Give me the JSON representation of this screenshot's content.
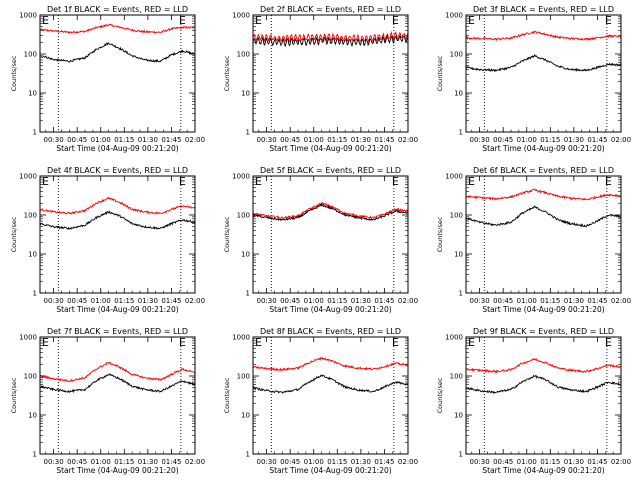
{
  "chart_data": [
    {
      "type": "line",
      "title": "Det 1f BLACK = Events, RED = LLD",
      "ylabel": "Counts/sec",
      "xlabel": "Start Time (04-Aug-09 00:21:20)",
      "x_ticks": [
        "00:30",
        "00:45",
        "01:00",
        "01:15",
        "01:30",
        "01:45",
        "02:00"
      ],
      "y_ticks": [
        "1",
        "10",
        "100",
        "1000"
      ],
      "ylim": [
        1,
        1000
      ],
      "yscale": "log",
      "xlim": [
        "00:21:20",
        "02:00:00"
      ],
      "flag_labels": [
        "E",
        "E"
      ],
      "markers_x": [
        "00:33",
        "01:51"
      ],
      "series": [
        {
          "color": "#ff0000",
          "x": [
            "00:21",
            "00:30",
            "00:40",
            "00:50",
            "00:57",
            "01:05",
            "01:12",
            "01:20",
            "01:28",
            "01:38",
            "01:45",
            "01:52",
            "02:00"
          ],
          "values": [
            420,
            390,
            360,
            380,
            470,
            560,
            490,
            410,
            370,
            360,
            440,
            480,
            470
          ]
        },
        {
          "color": "#000000",
          "x": [
            "00:21",
            "00:30",
            "00:40",
            "00:50",
            "00:57",
            "01:05",
            "01:12",
            "01:20",
            "01:28",
            "01:38",
            "01:45",
            "01:52",
            "02:00"
          ],
          "values": [
            95,
            72,
            65,
            80,
            130,
            190,
            140,
            90,
            70,
            65,
            95,
            120,
            100
          ]
        }
      ]
    },
    {
      "type": "line",
      "title": "Det 2f BLACK = Events, RED = LLD",
      "ylabel": "Counts/sec",
      "xlabel": "Start Time (04-Aug-09 00:21:20)",
      "x_ticks": [
        "00:30",
        "00:45",
        "01:00",
        "01:15",
        "01:30",
        "01:45",
        "02:00"
      ],
      "y_ticks": [
        "1",
        "10",
        "100",
        "1000"
      ],
      "ylim": [
        1,
        1000
      ],
      "yscale": "log",
      "xlim": [
        "00:21:20",
        "02:00:00"
      ],
      "flag_labels": [
        "E",
        "E"
      ],
      "markers_x": [
        "00:33",
        "01:51"
      ],
      "series": [
        {
          "color": "#ff0000",
          "x": [
            "00:21",
            "00:30",
            "00:40",
            "00:50",
            "01:00",
            "01:10",
            "01:20",
            "01:30",
            "01:40",
            "01:50",
            "02:00"
          ],
          "values": [
            270,
            260,
            250,
            255,
            265,
            270,
            255,
            250,
            265,
            290,
            300
          ]
        },
        {
          "color": "#000000",
          "x": [
            "00:21",
            "00:30",
            "00:40",
            "00:50",
            "01:00",
            "01:10",
            "01:20",
            "01:30",
            "01:40",
            "01:50",
            "02:00"
          ],
          "values": [
            220,
            210,
            200,
            205,
            215,
            220,
            205,
            200,
            215,
            240,
            250
          ]
        }
      ]
    },
    {
      "type": "line",
      "title": "Det 3f BLACK = Events, RED = LLD",
      "ylabel": "Counts/sec",
      "xlabel": "Start Time (04-Aug-09 00:21:20)",
      "x_ticks": [
        "00:30",
        "00:45",
        "01:00",
        "01:15",
        "01:30",
        "01:45",
        "02:00"
      ],
      "y_ticks": [
        "1",
        "10",
        "100",
        "1000"
      ],
      "ylim": [
        1,
        1000
      ],
      "yscale": "log",
      "xlim": [
        "00:21:20",
        "02:00:00"
      ],
      "flag_labels": [
        "E",
        "E"
      ],
      "markers_x": [
        "00:33",
        "01:51"
      ],
      "series": [
        {
          "color": "#ff0000",
          "x": [
            "00:21",
            "00:30",
            "00:40",
            "00:50",
            "00:57",
            "01:05",
            "01:12",
            "01:20",
            "01:28",
            "01:38",
            "01:45",
            "01:52",
            "02:00"
          ],
          "values": [
            260,
            250,
            240,
            255,
            310,
            370,
            320,
            270,
            250,
            240,
            260,
            290,
            280
          ]
        },
        {
          "color": "#000000",
          "x": [
            "00:21",
            "00:30",
            "00:40",
            "00:50",
            "00:57",
            "01:05",
            "01:12",
            "01:20",
            "01:28",
            "01:38",
            "01:45",
            "01:52",
            "02:00"
          ],
          "values": [
            45,
            40,
            38,
            45,
            65,
            90,
            70,
            48,
            40,
            38,
            45,
            55,
            52
          ]
        }
      ]
    },
    {
      "type": "line",
      "title": "Det 4f BLACK = Events, RED = LLD",
      "ylabel": "Counts/sec",
      "xlabel": "Start Time (04-Aug-09 00:21:20)",
      "x_ticks": [
        "00:30",
        "00:45",
        "01:00",
        "01:15",
        "01:30",
        "01:45",
        "02:00"
      ],
      "y_ticks": [
        "1",
        "10",
        "100",
        "1000"
      ],
      "ylim": [
        1,
        1000
      ],
      "yscale": "log",
      "xlim": [
        "00:21:20",
        "02:00:00"
      ],
      "flag_labels": [
        "E",
        "E"
      ],
      "markers_x": [
        "00:33",
        "01:51"
      ],
      "series": [
        {
          "color": "#ff0000",
          "x": [
            "00:21",
            "00:30",
            "00:40",
            "00:50",
            "00:57",
            "01:05",
            "01:12",
            "01:20",
            "01:28",
            "01:38",
            "01:45",
            "01:52",
            "02:00"
          ],
          "values": [
            140,
            120,
            110,
            130,
            200,
            270,
            210,
            140,
            120,
            110,
            140,
            170,
            150
          ]
        },
        {
          "color": "#000000",
          "x": [
            "00:21",
            "00:30",
            "00:40",
            "00:50",
            "00:57",
            "01:05",
            "01:12",
            "01:20",
            "01:28",
            "01:38",
            "01:45",
            "01:52",
            "02:00"
          ],
          "values": [
            60,
            50,
            45,
            55,
            85,
            120,
            95,
            60,
            50,
            45,
            60,
            75,
            65
          ]
        }
      ]
    },
    {
      "type": "line",
      "title": "Det 5f BLACK = Events, RED = LLD",
      "ylabel": "Counts/sec",
      "xlabel": "Start Time (04-Aug-09 00:21:20)",
      "x_ticks": [
        "00:30",
        "00:45",
        "01:00",
        "01:15",
        "01:30",
        "01:45",
        "02:00"
      ],
      "y_ticks": [
        "1",
        "10",
        "100",
        "1000"
      ],
      "ylim": [
        1,
        1000
      ],
      "yscale": "log",
      "xlim": [
        "00:21:20",
        "02:00:00"
      ],
      "flag_labels": [
        "E",
        "E"
      ],
      "markers_x": [
        "00:33",
        "01:51"
      ],
      "series": [
        {
          "color": "#ff0000",
          "x": [
            "00:21",
            "00:30",
            "00:40",
            "00:50",
            "00:57",
            "01:05",
            "01:12",
            "01:20",
            "01:28",
            "01:38",
            "01:45",
            "01:52",
            "02:00"
          ],
          "values": [
            110,
            95,
            85,
            95,
            140,
            200,
            160,
            110,
            95,
            85,
            105,
            140,
            125
          ]
        },
        {
          "color": "#000000",
          "x": [
            "00:21",
            "00:30",
            "00:40",
            "00:50",
            "00:57",
            "01:05",
            "01:12",
            "01:20",
            "01:28",
            "01:38",
            "01:45",
            "01:52",
            "02:00"
          ],
          "values": [
            100,
            85,
            75,
            85,
            125,
            180,
            145,
            100,
            85,
            75,
            95,
            125,
            112
          ]
        }
      ]
    },
    {
      "type": "line",
      "title": "Det 6f BLACK = Events, RED = LLD",
      "ylabel": "Counts/sec",
      "xlabel": "Start Time (04-Aug-09 00:21:20)",
      "x_ticks": [
        "00:30",
        "00:45",
        "01:00",
        "01:15",
        "01:30",
        "01:45",
        "02:00"
      ],
      "y_ticks": [
        "1",
        "10",
        "100",
        "1000"
      ],
      "ylim": [
        1,
        1000
      ],
      "yscale": "log",
      "xlim": [
        "00:21:20",
        "02:00:00"
      ],
      "flag_labels": [
        "E",
        "E"
      ],
      "markers_x": [
        "00:33",
        "01:51"
      ],
      "series": [
        {
          "color": "#ff0000",
          "x": [
            "00:21",
            "00:30",
            "00:40",
            "00:50",
            "00:57",
            "01:05",
            "01:12",
            "01:20",
            "01:28",
            "01:38",
            "01:45",
            "01:52",
            "02:00"
          ],
          "values": [
            300,
            280,
            260,
            290,
            360,
            440,
            370,
            300,
            270,
            250,
            290,
            330,
            310
          ]
        },
        {
          "color": "#000000",
          "x": [
            "00:21",
            "00:30",
            "00:40",
            "00:50",
            "00:57",
            "01:05",
            "01:12",
            "01:20",
            "01:28",
            "01:38",
            "01:45",
            "01:52",
            "02:00"
          ],
          "values": [
            85,
            65,
            55,
            65,
            110,
            160,
            120,
            75,
            60,
            52,
            70,
            100,
            90
          ]
        }
      ]
    },
    {
      "type": "line",
      "title": "Det 7f BLACK = Events, RED = LLD",
      "ylabel": "Counts/sec",
      "xlabel": "Start Time (04-Aug-09 00:21:20)",
      "x_ticks": [
        "00:30",
        "00:45",
        "01:00",
        "01:15",
        "01:30",
        "01:45",
        "02:00"
      ],
      "y_ticks": [
        "1",
        "10",
        "100",
        "1000"
      ],
      "ylim": [
        1,
        1000
      ],
      "yscale": "log",
      "xlim": [
        "00:21:20",
        "02:00:00"
      ],
      "flag_labels": [
        "E",
        "E"
      ],
      "markers_x": [
        "00:33",
        "01:51"
      ],
      "series": [
        {
          "color": "#ff0000",
          "x": [
            "00:21",
            "00:30",
            "00:40",
            "00:50",
            "00:57",
            "01:05",
            "01:12",
            "01:20",
            "01:28",
            "01:38",
            "01:45",
            "01:52",
            "02:00"
          ],
          "values": [
            100,
            85,
            75,
            90,
            150,
            220,
            170,
            110,
            90,
            80,
            110,
            150,
            120
          ]
        },
        {
          "color": "#000000",
          "x": [
            "00:21",
            "00:30",
            "00:40",
            "00:50",
            "00:57",
            "01:05",
            "01:12",
            "01:20",
            "01:28",
            "01:38",
            "01:45",
            "01:52",
            "02:00"
          ],
          "values": [
            55,
            45,
            40,
            45,
            75,
            110,
            85,
            55,
            45,
            40,
            55,
            75,
            60
          ]
        }
      ]
    },
    {
      "type": "line",
      "title": "Det 8f BLACK = Events, RED = LLD",
      "ylabel": "Counts/sec",
      "xlabel": "Start Time (04-Aug-09 00:21:20)",
      "x_ticks": [
        "00:30",
        "00:45",
        "01:00",
        "01:15",
        "01:30",
        "01:45",
        "02:00"
      ],
      "y_ticks": [
        "1",
        "10",
        "100",
        "1000"
      ],
      "ylim": [
        1,
        1000
      ],
      "yscale": "log",
      "xlim": [
        "00:21:20",
        "02:00:00"
      ],
      "flag_labels": [
        "E",
        "E"
      ],
      "markers_x": [
        "00:33",
        "01:51"
      ],
      "series": [
        {
          "color": "#ff0000",
          "x": [
            "00:21",
            "00:30",
            "00:40",
            "00:50",
            "00:57",
            "01:05",
            "01:12",
            "01:20",
            "01:28",
            "01:38",
            "01:45",
            "01:52",
            "02:00"
          ],
          "values": [
            170,
            155,
            145,
            160,
            220,
            290,
            240,
            180,
            160,
            150,
            175,
            210,
            190
          ]
        },
        {
          "color": "#000000",
          "x": [
            "00:21",
            "00:30",
            "00:40",
            "00:50",
            "00:57",
            "01:05",
            "01:12",
            "01:20",
            "01:28",
            "01:38",
            "01:45",
            "01:52",
            "02:00"
          ],
          "values": [
            50,
            42,
            38,
            45,
            70,
            105,
            80,
            52,
            44,
            40,
            52,
            70,
            60
          ]
        }
      ]
    },
    {
      "type": "line",
      "title": "Det 9f BLACK = Events, RED = LLD",
      "ylabel": "Counts/sec",
      "xlabel": "Start Time (04-Aug-09 00:21:20)",
      "x_ticks": [
        "00:30",
        "00:45",
        "01:00",
        "01:15",
        "01:30",
        "01:45",
        "02:00"
      ],
      "y_ticks": [
        "1",
        "10",
        "100",
        "1000"
      ],
      "ylim": [
        1,
        1000
      ],
      "yscale": "log",
      "xlim": [
        "00:21:20",
        "02:00:00"
      ],
      "flag_labels": [
        "E",
        "E"
      ],
      "markers_x": [
        "00:33",
        "01:51"
      ],
      "series": [
        {
          "color": "#ff0000",
          "x": [
            "00:21",
            "00:30",
            "00:40",
            "00:50",
            "00:57",
            "01:05",
            "01:12",
            "01:20",
            "01:28",
            "01:38",
            "01:45",
            "01:52",
            "02:00"
          ],
          "values": [
            150,
            140,
            130,
            145,
            210,
            270,
            220,
            160,
            140,
            130,
            155,
            190,
            170
          ]
        },
        {
          "color": "#000000",
          "x": [
            "00:21",
            "00:30",
            "00:40",
            "00:50",
            "00:57",
            "01:05",
            "01:12",
            "01:20",
            "01:28",
            "01:38",
            "01:45",
            "01:52",
            "02:00"
          ],
          "values": [
            50,
            42,
            38,
            45,
            70,
            100,
            80,
            52,
            44,
            40,
            52,
            70,
            60
          ]
        }
      ]
    }
  ]
}
